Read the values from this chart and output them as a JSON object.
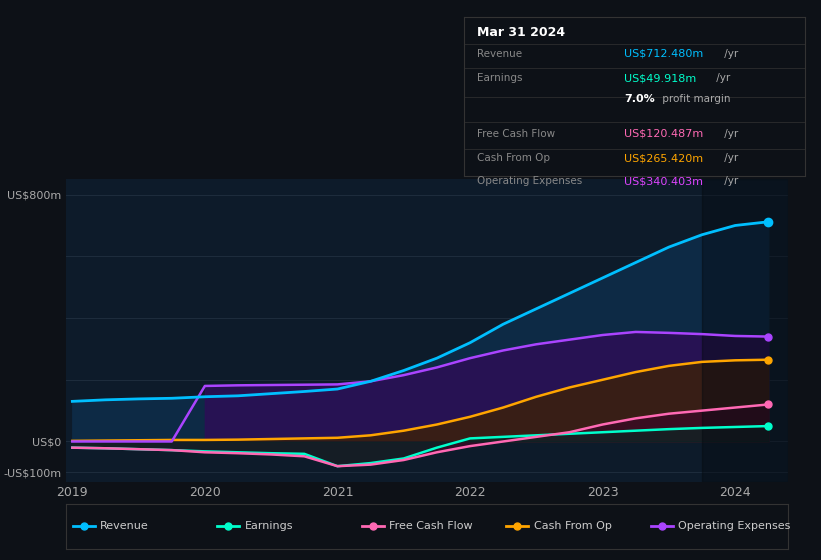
{
  "bg_color": "#0d1117",
  "plot_bg_color": "#0d1b2a",
  "grid_color": "#1e2d3d",
  "x_years": [
    2019,
    2019.25,
    2019.5,
    2019.75,
    2020,
    2020.25,
    2020.5,
    2020.75,
    2021,
    2021.25,
    2021.5,
    2021.75,
    2022,
    2022.25,
    2022.5,
    2022.75,
    2023,
    2023.25,
    2023.5,
    2023.75,
    2024,
    2024.25
  ],
  "revenue": [
    130,
    135,
    138,
    140,
    145,
    148,
    155,
    162,
    170,
    195,
    230,
    270,
    320,
    380,
    430,
    480,
    530,
    580,
    630,
    670,
    700,
    712
  ],
  "earnings": [
    -20,
    -22,
    -25,
    -28,
    -32,
    -35,
    -38,
    -40,
    -80,
    -70,
    -55,
    -20,
    10,
    15,
    20,
    25,
    30,
    35,
    40,
    44,
    47,
    50
  ],
  "free_cash_flow": [
    -20,
    -22,
    -25,
    -28,
    -35,
    -38,
    -42,
    -48,
    -80,
    -75,
    -60,
    -35,
    -15,
    0,
    15,
    30,
    55,
    75,
    90,
    100,
    110,
    120
  ],
  "cash_from_op": [
    2,
    3,
    4,
    5,
    5,
    6,
    8,
    10,
    12,
    20,
    35,
    55,
    80,
    110,
    145,
    175,
    200,
    225,
    245,
    258,
    263,
    265
  ],
  "op_expenses": [
    0,
    0,
    0,
    0,
    180,
    182,
    183,
    184,
    185,
    195,
    215,
    240,
    270,
    295,
    315,
    330,
    345,
    355,
    352,
    348,
    342,
    340
  ],
  "forecast_start": 2023.75,
  "ylim": [
    -130,
    850
  ],
  "xticks": [
    2019,
    2020,
    2021,
    2022,
    2023,
    2024
  ],
  "xtick_labels": [
    "2019",
    "2020",
    "2021",
    "2022",
    "2023",
    "2024"
  ],
  "revenue_color": "#00bfff",
  "earnings_color": "#00ffcc",
  "fcf_color": "#ff69b4",
  "cashop_color": "#ffa500",
  "opex_color": "#aa44ff",
  "info_box": {
    "title": "Mar 31 2024",
    "rows": [
      {
        "label": "Revenue",
        "value": "US$712.480m",
        "value_color": "#00bfff",
        "suffix": " /yr"
      },
      {
        "label": "Earnings",
        "value": "US$49.918m",
        "value_color": "#00ffcc",
        "suffix": " /yr"
      },
      {
        "label": "",
        "value": "7.0%",
        "value_color": "#ffffff",
        "suffix": " profit margin",
        "bold_value": true
      },
      {
        "label": "Free Cash Flow",
        "value": "US$120.487m",
        "value_color": "#ff69b4",
        "suffix": " /yr"
      },
      {
        "label": "Cash From Op",
        "value": "US$265.420m",
        "value_color": "#ffa500",
        "suffix": " /yr"
      },
      {
        "label": "Operating Expenses",
        "value": "US$340.403m",
        "value_color": "#dd44ff",
        "suffix": " /yr"
      }
    ]
  },
  "legend": [
    {
      "label": "Revenue",
      "color": "#00bfff"
    },
    {
      "label": "Earnings",
      "color": "#00ffcc"
    },
    {
      "label": "Free Cash Flow",
      "color": "#ff69b4"
    },
    {
      "label": "Cash From Op",
      "color": "#ffa500"
    },
    {
      "label": "Operating Expenses",
      "color": "#aa44ff"
    }
  ]
}
